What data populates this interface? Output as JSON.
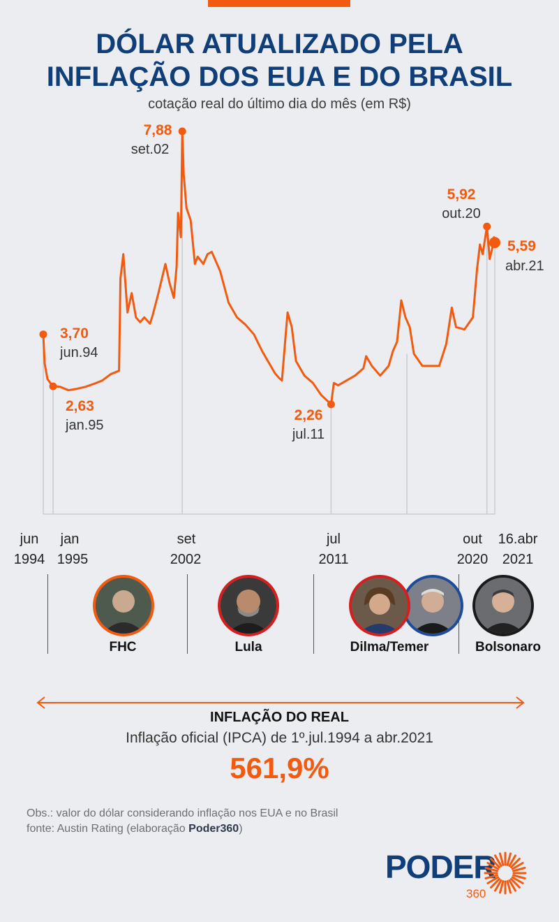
{
  "header": {
    "title_line1": "DÓLAR ATUALIZADO PELA",
    "title_line2": "INFLAÇÃO DOS EUA E DO BRASIL",
    "subtitle": "cotação real do último dia do mês (em R$)"
  },
  "colors": {
    "accent": "#f25a0f",
    "brand": "#0f3e78",
    "background": "#ecedf0"
  },
  "chart_data": {
    "type": "line",
    "title": "DÓLAR ATUALIZADO PELA INFLAÇÃO DOS EUA E DO BRASIL",
    "subtitle": "cotação real do último dia do mês (em R$)",
    "ylim": [
      0,
      8.5
    ],
    "grid": false,
    "series": [
      {
        "points": [
          [
            "1994-06",
            3.7
          ],
          [
            "1994-07",
            3.1
          ],
          [
            "1994-09",
            2.78
          ],
          [
            "1994-11",
            2.7
          ],
          [
            "1995-01",
            2.63
          ],
          [
            "1995-06",
            2.62
          ],
          [
            "1995-12",
            2.55
          ],
          [
            "1996-06",
            2.58
          ],
          [
            "1996-12",
            2.62
          ],
          [
            "1997-06",
            2.68
          ],
          [
            "1997-12",
            2.75
          ],
          [
            "1998-06",
            2.88
          ],
          [
            "1998-12",
            2.95
          ],
          [
            "1999-01",
            4.85
          ],
          [
            "1999-03",
            5.35
          ],
          [
            "1999-06",
            4.15
          ],
          [
            "1999-09",
            4.55
          ],
          [
            "1999-12",
            4.05
          ],
          [
            "2000-03",
            3.95
          ],
          [
            "2000-06",
            4.05
          ],
          [
            "2000-10",
            3.92
          ],
          [
            "2000-12",
            4.1
          ],
          [
            "2001-04",
            4.55
          ],
          [
            "2001-09",
            5.15
          ],
          [
            "2001-12",
            4.75
          ],
          [
            "2002-03",
            4.45
          ],
          [
            "2002-05",
            5.1
          ],
          [
            "2002-06",
            6.2
          ],
          [
            "2002-08",
            5.7
          ],
          [
            "2002-09",
            7.88
          ],
          [
            "2002-10",
            7.0
          ],
          [
            "2002-12",
            6.3
          ],
          [
            "2003-03",
            6.05
          ],
          [
            "2003-06",
            5.15
          ],
          [
            "2003-08",
            5.3
          ],
          [
            "2003-12",
            5.15
          ],
          [
            "2004-03",
            5.35
          ],
          [
            "2004-06",
            5.4
          ],
          [
            "2004-12",
            5.0
          ],
          [
            "2005-06",
            4.35
          ],
          [
            "2005-12",
            4.05
          ],
          [
            "2006-06",
            3.9
          ],
          [
            "2006-12",
            3.7
          ],
          [
            "2007-06",
            3.35
          ],
          [
            "2007-12",
            3.05
          ],
          [
            "2008-03",
            2.9
          ],
          [
            "2008-06",
            2.8
          ],
          [
            "2008-08",
            2.75
          ],
          [
            "2008-11",
            3.8
          ],
          [
            "2008-12",
            4.15
          ],
          [
            "2009-03",
            3.85
          ],
          [
            "2009-06",
            3.15
          ],
          [
            "2009-12",
            2.85
          ],
          [
            "2010-06",
            2.7
          ],
          [
            "2010-12",
            2.45
          ],
          [
            "2011-07",
            2.26
          ],
          [
            "2011-09",
            2.7
          ],
          [
            "2011-12",
            2.65
          ],
          [
            "2012-06",
            2.75
          ],
          [
            "2012-12",
            2.85
          ],
          [
            "2013-06",
            3.0
          ],
          [
            "2013-08",
            3.25
          ],
          [
            "2013-12",
            3.05
          ],
          [
            "2014-06",
            2.85
          ],
          [
            "2014-12",
            3.05
          ],
          [
            "2015-03",
            3.35
          ],
          [
            "2015-06",
            3.55
          ],
          [
            "2015-09",
            4.4
          ],
          [
            "2015-12",
            4.05
          ],
          [
            "2016-03",
            3.85
          ],
          [
            "2016-06",
            3.3
          ],
          [
            "2016-12",
            3.05
          ],
          [
            "2017-06",
            3.05
          ],
          [
            "2017-12",
            3.05
          ],
          [
            "2018-05",
            3.5
          ],
          [
            "2018-09",
            4.25
          ],
          [
            "2018-12",
            3.85
          ],
          [
            "2019-06",
            3.8
          ],
          [
            "2019-12",
            4.05
          ],
          [
            "2020-03",
            5.05
          ],
          [
            "2020-05",
            5.55
          ],
          [
            "2020-07",
            5.35
          ],
          [
            "2020-10",
            5.92
          ],
          [
            "2020-12",
            5.25
          ],
          [
            "2021-02",
            5.5
          ],
          [
            "2021-03",
            5.7
          ],
          [
            "2021-04-16",
            5.59
          ]
        ]
      }
    ],
    "highlights": [
      {
        "date": "1994-06",
        "value_label": "3,70",
        "date_label": "jun.94",
        "axis_top": "jun",
        "axis_bottom": "1994"
      },
      {
        "date": "1995-01",
        "value_label": "2,63",
        "date_label": "jan.95",
        "axis_top": "jan",
        "axis_bottom": "1995"
      },
      {
        "date": "2002-09",
        "value_label": "7,88",
        "date_label": "set.02",
        "axis_top": "set",
        "axis_bottom": "2002"
      },
      {
        "date": "2011-07",
        "value_label": "2,26",
        "date_label": "jul.11",
        "axis_top": "jul",
        "axis_bottom": "2011"
      },
      {
        "date": "2020-10",
        "value_label": "5,92",
        "date_label": "out.20",
        "axis_top": "out",
        "axis_bottom": "2020"
      },
      {
        "date": "2021-04-16",
        "value_label": "5,59",
        "date_label": "abr.21",
        "axis_top": "16.abr",
        "axis_bottom": "2021"
      }
    ],
    "extra_gridline_date": "2016-01"
  },
  "presidents": [
    {
      "name": "FHC",
      "icon": "person-avatar-icon"
    },
    {
      "name": "Lula",
      "icon": "person-avatar-icon"
    },
    {
      "name": "Dilma/Temer",
      "icon": "person-avatar-icon"
    },
    {
      "name": "Bolsonaro",
      "icon": "person-avatar-icon"
    }
  ],
  "inflation": {
    "heading": "INFLAÇÃO DO REAL",
    "description": "Inflação oficial (IPCA) de 1º.jul.1994 a abr.2021",
    "value": "561,9%"
  },
  "notes": {
    "obs": "Obs.: valor do dólar considerando inflação nos EUA e no Brasil",
    "source_prefix": "fonte: Austin Rating (elaboração ",
    "source_brand": "Poder360",
    "source_suffix": ")"
  },
  "logo": {
    "word": "PODER",
    "number": "360",
    "icon": "sunburst-logo-icon"
  }
}
